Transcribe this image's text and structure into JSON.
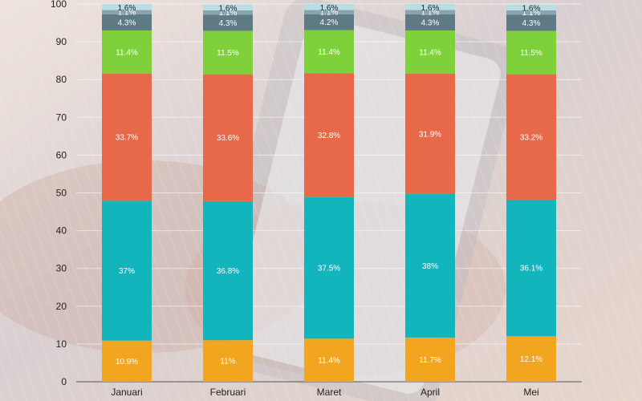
{
  "chart_data": {
    "type": "bar",
    "stacked": true,
    "categories": [
      "Januari",
      "Februari",
      "Maret",
      "April",
      "Mei"
    ],
    "ylim": [
      0,
      100
    ],
    "yticks": [
      0,
      10,
      20,
      30,
      40,
      50,
      60,
      70,
      80,
      90,
      100
    ],
    "series": [
      {
        "color": "#f2a51f",
        "values": [
          10.9,
          11,
          11.4,
          11.7,
          12.1
        ],
        "labels": [
          "10.9%",
          "11%",
          "11.4%",
          "11.7%",
          "12.1%"
        ]
      },
      {
        "color": "#13b5bd",
        "values": [
          37,
          36.8,
          37.5,
          38,
          36.1
        ],
        "labels": [
          "37%",
          "36.8%",
          "37.5%",
          "38%",
          "36.1%"
        ]
      },
      {
        "color": "#e8694a",
        "values": [
          33.7,
          33.6,
          32.8,
          31.9,
          33.2
        ],
        "labels": [
          "33.7%",
          "33.6%",
          "32.8%",
          "31.9%",
          "33.2%"
        ]
      },
      {
        "color": "#7fd13b",
        "values": [
          11.4,
          11.5,
          11.4,
          11.4,
          11.5
        ],
        "labels": [
          "11.4%",
          "11.5%",
          "11.4%",
          "11.4%",
          "11.5%"
        ]
      },
      {
        "color": "#5d7a85",
        "values": [
          4.3,
          4.3,
          4.2,
          4.3,
          4.3
        ],
        "labels": [
          "4.3%",
          "4.3%",
          "4.2%",
          "4.3%",
          "4.3%"
        ]
      },
      {
        "color": "#8aa4ad",
        "values": [
          1.1,
          1.1,
          1.1,
          1.1,
          1.1
        ],
        "labels": [
          "1.1%",
          "1.1%",
          "1.1%",
          "1.1%",
          "1.1%"
        ]
      },
      {
        "color": "#b9dde3",
        "values": [
          1.6,
          1.6,
          1.6,
          1.6,
          1.6
        ],
        "labels": [
          "1.6%",
          "1.6%",
          "1.6%",
          "1.6%",
          "1.6%"
        ]
      }
    ]
  }
}
